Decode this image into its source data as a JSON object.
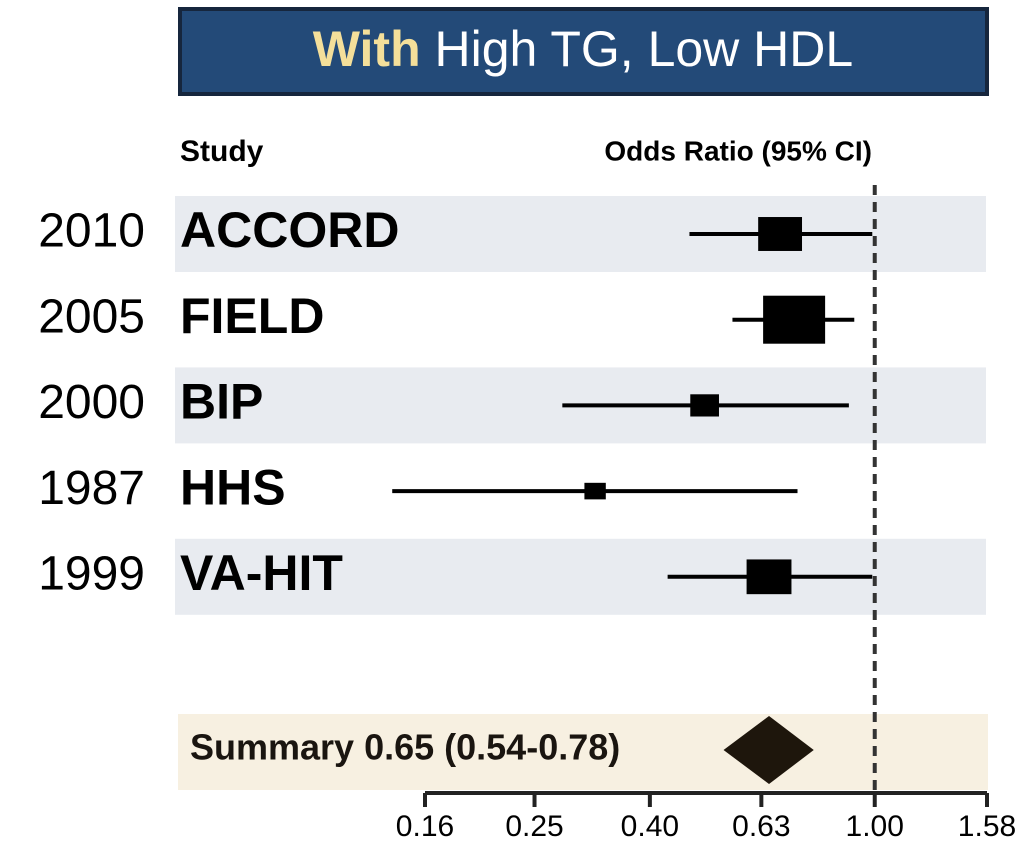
{
  "chart_data": {
    "type": "forest",
    "title_highlight": "With",
    "title": "High TG, Low HDL",
    "column_headers": [
      "Study",
      "Odds Ratio (95% CI)"
    ],
    "years": [
      "2010",
      "2005",
      "2000",
      "1987",
      "1999"
    ],
    "categories": [
      "ACCORD",
      "FIELD",
      "BIP",
      "HHS",
      "VA-HIT"
    ],
    "values": [
      0.68,
      0.72,
      0.5,
      0.32,
      0.65
    ],
    "ci_low": [
      0.47,
      0.56,
      0.28,
      0.14,
      0.43
    ],
    "ci_high": [
      0.99,
      0.92,
      0.9,
      0.73,
      0.99
    ],
    "weights": [
      21,
      42,
      9,
      5,
      22
    ],
    "summary": {
      "label": "Summary 0.65 (0.54-0.78)",
      "value": 0.65,
      "lo": 0.54,
      "hi": 0.78
    },
    "ref_line": 1,
    "log_scale": true,
    "xlim": [
      0.16,
      1.58
    ],
    "xticks": [
      0.16,
      0.25,
      {
        "value": 0.4,
        "label": "0.40"
      },
      0.63,
      {
        "value": 1,
        "label": "1.00"
      },
      1.58
    ],
    "color": "#000000"
  }
}
